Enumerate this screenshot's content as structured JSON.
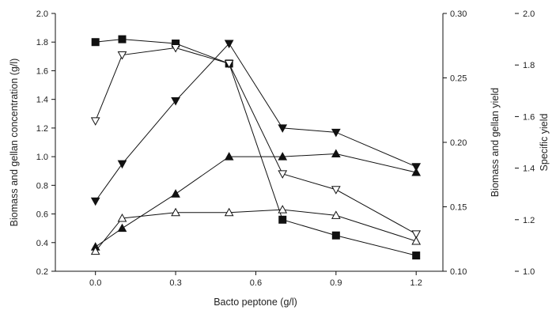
{
  "chart_data": {
    "type": "line",
    "xlabel": "Bacto peptone (g/l)",
    "ylabel_left": "Biomass and gellan concentration (g/l)",
    "ylabel_right1": "Biomass and gellan yield",
    "ylabel_right2": "Specific yield",
    "xlim": [
      -0.15,
      1.3
    ],
    "x_ticks": [
      "0.0",
      "0.3",
      "0.6",
      "0.9",
      "1.2"
    ],
    "y_left": {
      "lim": [
        0.2,
        2.0
      ],
      "ticks": [
        "0.2",
        "0.4",
        "0.6",
        "0.8",
        "1.0",
        "1.2",
        "1.4",
        "1.6",
        "1.8",
        "2.0"
      ]
    },
    "y_right1": {
      "lim": [
        0.1,
        0.3
      ],
      "ticks": [
        "0.10",
        "0.15",
        "0.20",
        "0.25",
        "0.30"
      ]
    },
    "y_right2": {
      "lim": [
        1.0,
        2.0
      ],
      "ticks": [
        "1.0",
        "1.2",
        "1.4",
        "1.6",
        "1.8",
        "2.0"
      ]
    },
    "grid": false,
    "series": [
      {
        "marker": "square-filled",
        "x": [
          0.0,
          0.1,
          0.3,
          0.5,
          0.7,
          0.9,
          1.2
        ],
        "y": [
          1.8,
          1.82,
          1.79,
          1.65,
          0.56,
          0.45,
          0.31
        ]
      },
      {
        "marker": "triangle-down-open",
        "x": [
          0.0,
          0.1,
          0.3,
          0.5,
          0.7,
          0.9,
          1.2
        ],
        "y": [
          1.25,
          1.71,
          1.76,
          1.65,
          0.88,
          0.77,
          0.46
        ]
      },
      {
        "marker": "triangle-down-filled",
        "x": [
          0.0,
          0.1,
          0.3,
          0.5,
          0.7,
          0.9,
          1.2
        ],
        "y": [
          0.69,
          0.95,
          1.39,
          1.79,
          1.2,
          1.17,
          0.93
        ]
      },
      {
        "marker": "triangle-up-filled",
        "x": [
          0.0,
          0.1,
          0.3,
          0.5,
          0.7,
          0.9,
          1.2
        ],
        "y": [
          0.37,
          0.5,
          0.74,
          1.0,
          1.0,
          1.02,
          0.89
        ]
      },
      {
        "marker": "triangle-up-open",
        "x": [
          0.0,
          0.1,
          0.3,
          0.5,
          0.7,
          0.9,
          1.2
        ],
        "y": [
          0.34,
          0.57,
          0.61,
          0.61,
          0.63,
          0.59,
          0.41
        ]
      }
    ]
  }
}
